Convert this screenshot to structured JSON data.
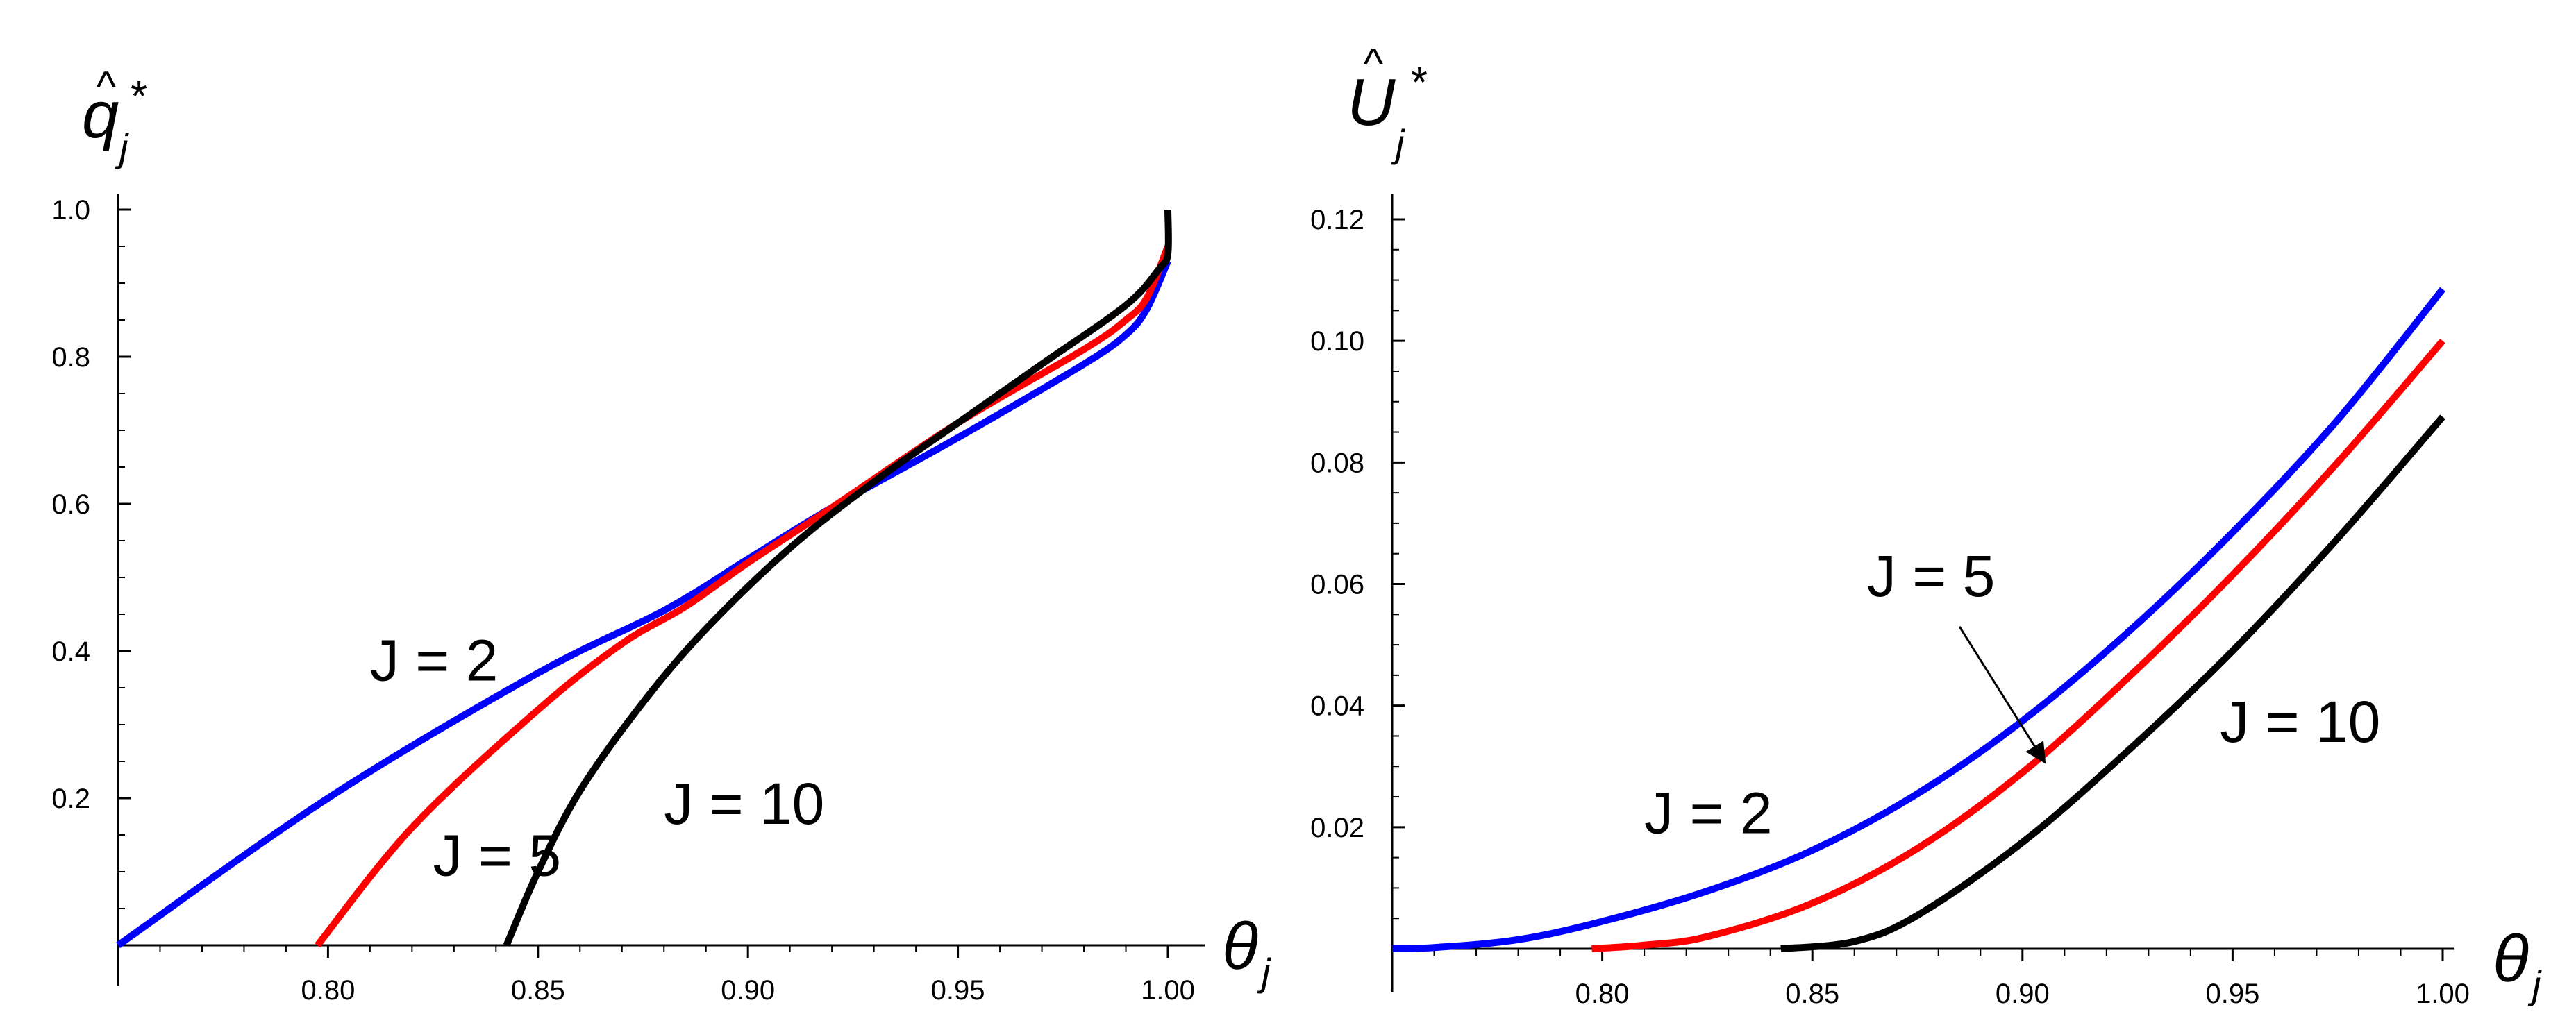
{
  "colors": {
    "J = 2": "#0000ff",
    "J = 5": "#ff0000",
    "J = 10": "#000000"
  },
  "chart_data": [
    {
      "type": "line",
      "ylabel": "q̂*j",
      "xlabel": "θj",
      "xlim": [
        0.75,
        1.0
      ],
      "ylim": [
        0,
        1.0
      ],
      "x_ticks": [
        "0.80",
        "0.85",
        "0.90",
        "0.95",
        "1.00"
      ],
      "y_ticks": [
        "0.2",
        "0.4",
        "0.6",
        "0.8",
        "1.0"
      ],
      "series": [
        {
          "name": "J = 2",
          "x": [
            0.75,
            0.8,
            0.85,
            0.88,
            0.9,
            0.92,
            0.95,
            0.98,
            0.99,
            0.995,
            1.0
          ],
          "y": [
            0.0,
            0.2,
            0.37,
            0.455,
            0.525,
            0.595,
            0.69,
            0.79,
            0.83,
            0.865,
            0.93
          ]
        },
        {
          "name": "J = 5",
          "x": [
            0.7975,
            0.82,
            0.85,
            0.87,
            0.885,
            0.9,
            0.92,
            0.95,
            0.98,
            0.99,
            0.995,
            1.0
          ],
          "y": [
            0.0,
            0.16,
            0.32,
            0.41,
            0.46,
            0.52,
            0.595,
            0.71,
            0.81,
            0.85,
            0.88,
            0.95
          ]
        },
        {
          "name": "J = 10",
          "x": [
            0.8425,
            0.85,
            0.86,
            0.875,
            0.89,
            0.91,
            0.93,
            0.95,
            0.97,
            0.99,
            0.998,
            1.0,
            1.0
          ],
          "y": [
            0.0,
            0.1,
            0.21,
            0.33,
            0.43,
            0.54,
            0.63,
            0.71,
            0.79,
            0.87,
            0.92,
            0.94,
            1.0
          ]
        }
      ],
      "labels": [
        {
          "text": "J = 2",
          "series": "J = 2",
          "x": 0.81,
          "y": 0.36
        },
        {
          "text": "J = 5",
          "series": "J = 5",
          "x": 0.825,
          "y": 0.095
        },
        {
          "text": "J = 10",
          "series": "J = 10",
          "x": 0.88,
          "y": 0.165
        }
      ]
    },
    {
      "type": "line",
      "ylabel": "Û*j",
      "xlabel": "θj",
      "xlim": [
        0.75,
        1.0
      ],
      "ylim": [
        0,
        0.12
      ],
      "x_ticks": [
        "0.80",
        "0.85",
        "0.90",
        "0.95",
        "1.00"
      ],
      "y_ticks": [
        "0.02",
        "0.04",
        "0.06",
        "0.08",
        "0.10",
        "0.12"
      ],
      "series": [
        {
          "name": "J = 2",
          "x": [
            0.75,
            0.76,
            0.78,
            0.8,
            0.825,
            0.85,
            0.875,
            0.9,
            0.925,
            0.95,
            0.975,
            1.0
          ],
          "y": [
            0.0,
            0.0002,
            0.0015,
            0.0045,
            0.0095,
            0.0162,
            0.0255,
            0.0375,
            0.052,
            0.0685,
            0.087,
            0.1085
          ]
        },
        {
          "name": "J = 5",
          "x": [
            0.7975,
            0.81,
            0.825,
            0.85,
            0.875,
            0.9,
            0.925,
            0.95,
            0.975,
            1.0
          ],
          "y": [
            0.0,
            0.0006,
            0.002,
            0.0075,
            0.0165,
            0.029,
            0.0445,
            0.0615,
            0.08,
            0.1
          ]
        },
        {
          "name": "J = 10",
          "x": [
            0.8425,
            0.86,
            0.875,
            0.9,
            0.925,
            0.95,
            0.975,
            1.0
          ],
          "y": [
            0.0,
            0.0012,
            0.0055,
            0.0175,
            0.0325,
            0.049,
            0.0675,
            0.0875
          ]
        }
      ],
      "labels": [
        {
          "text": "J = 2",
          "series": "J = 2",
          "x": 0.81,
          "y": 0.019
        },
        {
          "text": "J = 5",
          "series": "J = 5",
          "x": 0.863,
          "y": 0.058
        },
        {
          "text": "J = 10",
          "series": "J = 10",
          "x": 0.947,
          "y": 0.034
        }
      ],
      "arrows": [
        {
          "series": "J = 5",
          "from": [
            0.885,
            0.053
          ],
          "to": [
            0.905,
            0.031
          ]
        }
      ]
    }
  ]
}
